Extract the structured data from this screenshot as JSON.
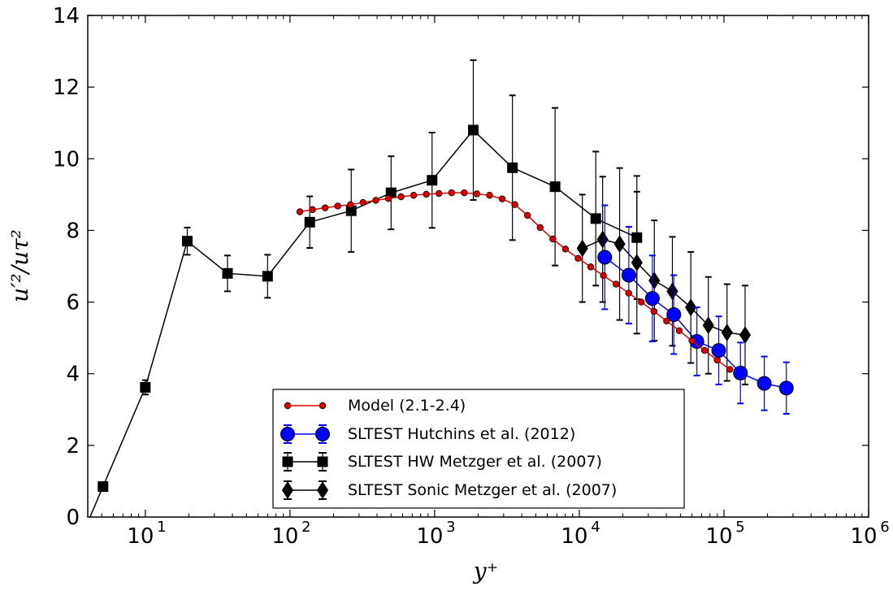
{
  "chart_data": {
    "type": "line",
    "xscale": "log",
    "xlim": [
      4,
      1000000
    ],
    "ylim": [
      0,
      14
    ],
    "xlabel": "y⁺",
    "ylabel": "u′²/uτ²",
    "xticks": [
      {
        "value": 10,
        "base": "10",
        "exp": "1"
      },
      {
        "value": 100,
        "base": "10",
        "exp": "2"
      },
      {
        "value": 1000,
        "base": "10",
        "exp": "3"
      },
      {
        "value": 10000,
        "base": "10",
        "exp": "4"
      },
      {
        "value": 100000,
        "base": "10",
        "exp": "5"
      },
      {
        "value": 1000000,
        "base": "10",
        "exp": "6"
      }
    ],
    "yticks": [
      0,
      2,
      4,
      6,
      8,
      10,
      12,
      14
    ],
    "legend_position": "lower-center",
    "series": [
      {
        "name": "Model (2.1-2.4)",
        "color": "#e00000",
        "line_color": "#e00000",
        "marker": "circle-small",
        "points": [
          [
            117,
            8.52
          ],
          [
            143,
            8.58
          ],
          [
            175,
            8.63
          ],
          [
            214,
            8.68
          ],
          [
            262,
            8.72
          ],
          [
            320,
            8.78
          ],
          [
            392,
            8.84
          ],
          [
            479,
            8.89
          ],
          [
            586,
            8.94
          ],
          [
            716,
            8.98
          ],
          [
            876,
            9.01
          ],
          [
            1071,
            9.03
          ],
          [
            1310,
            9.05
          ],
          [
            1602,
            9.05
          ],
          [
            1960,
            9.02
          ],
          [
            2396,
            8.98
          ],
          [
            2931,
            8.88
          ],
          [
            3585,
            8.72
          ],
          [
            4384,
            8.42
          ],
          [
            5362,
            8.08
          ],
          [
            6558,
            7.76
          ],
          [
            8020,
            7.48
          ],
          [
            9809,
            7.22
          ],
          [
            11997,
            6.98
          ],
          [
            14673,
            6.74
          ],
          [
            17945,
            6.5
          ],
          [
            21947,
            6.25
          ],
          [
            26841,
            6.0
          ],
          [
            32827,
            5.74
          ],
          [
            40149,
            5.47
          ],
          [
            49103,
            5.2
          ],
          [
            60055,
            4.92
          ],
          [
            73449,
            4.65
          ],
          [
            89830,
            4.38
          ],
          [
            109865,
            4.12
          ]
        ]
      },
      {
        "name": "SLTEST Hutchins et al. (2012)",
        "color": "#0000ff",
        "line_color": "#0000ff",
        "marker": "circle",
        "points": [
          [
            15000,
            7.25,
            1.45
          ],
          [
            22000,
            6.75,
            1.35
          ],
          [
            32000,
            6.1,
            1.2
          ],
          [
            45000,
            5.65,
            1.1
          ],
          [
            65000,
            4.9,
            0.95
          ],
          [
            92000,
            4.65,
            0.95
          ],
          [
            130000,
            4.02,
            0.85
          ],
          [
            190000,
            3.73,
            0.75
          ],
          [
            270000,
            3.6,
            0.72
          ]
        ]
      },
      {
        "name": "SLTEST HW Metzger et al. (2007)",
        "color": "#000000",
        "line_color": "#000000",
        "marker": "square",
        "points": [
          [
            5.1,
            0.85,
            0
          ],
          [
            10,
            3.62,
            0.2
          ],
          [
            19.5,
            7.7,
            0.38
          ],
          [
            37,
            6.8,
            0.5
          ],
          [
            70,
            6.72,
            0.6
          ],
          [
            137,
            8.23,
            0.72
          ],
          [
            265,
            8.55,
            1.15
          ],
          [
            500,
            9.05,
            1.02
          ],
          [
            960,
            9.4,
            1.33
          ],
          [
            1850,
            10.8,
            1.95
          ],
          [
            3450,
            9.75,
            2.02
          ],
          [
            6800,
            9.22,
            2.2
          ],
          [
            13000,
            8.33,
            1.87
          ],
          [
            25000,
            7.8,
            1.72
          ]
        ]
      },
      {
        "name": "SLTEST Sonic Metzger et al. (2007)",
        "color": "#000000",
        "line_color": "#000000",
        "marker": "diamond",
        "points": [
          [
            10500,
            7.5,
            1.5
          ],
          [
            14500,
            7.75,
            1.75
          ],
          [
            19000,
            7.62,
            2.12
          ],
          [
            25000,
            7.1,
            1.98
          ],
          [
            33000,
            6.6,
            1.68
          ],
          [
            44000,
            6.3,
            1.52
          ],
          [
            59000,
            5.85,
            1.55
          ],
          [
            78000,
            5.35,
            1.35
          ],
          [
            105000,
            5.15,
            1.35
          ],
          [
            140000,
            5.08,
            1.38
          ]
        ]
      }
    ]
  }
}
